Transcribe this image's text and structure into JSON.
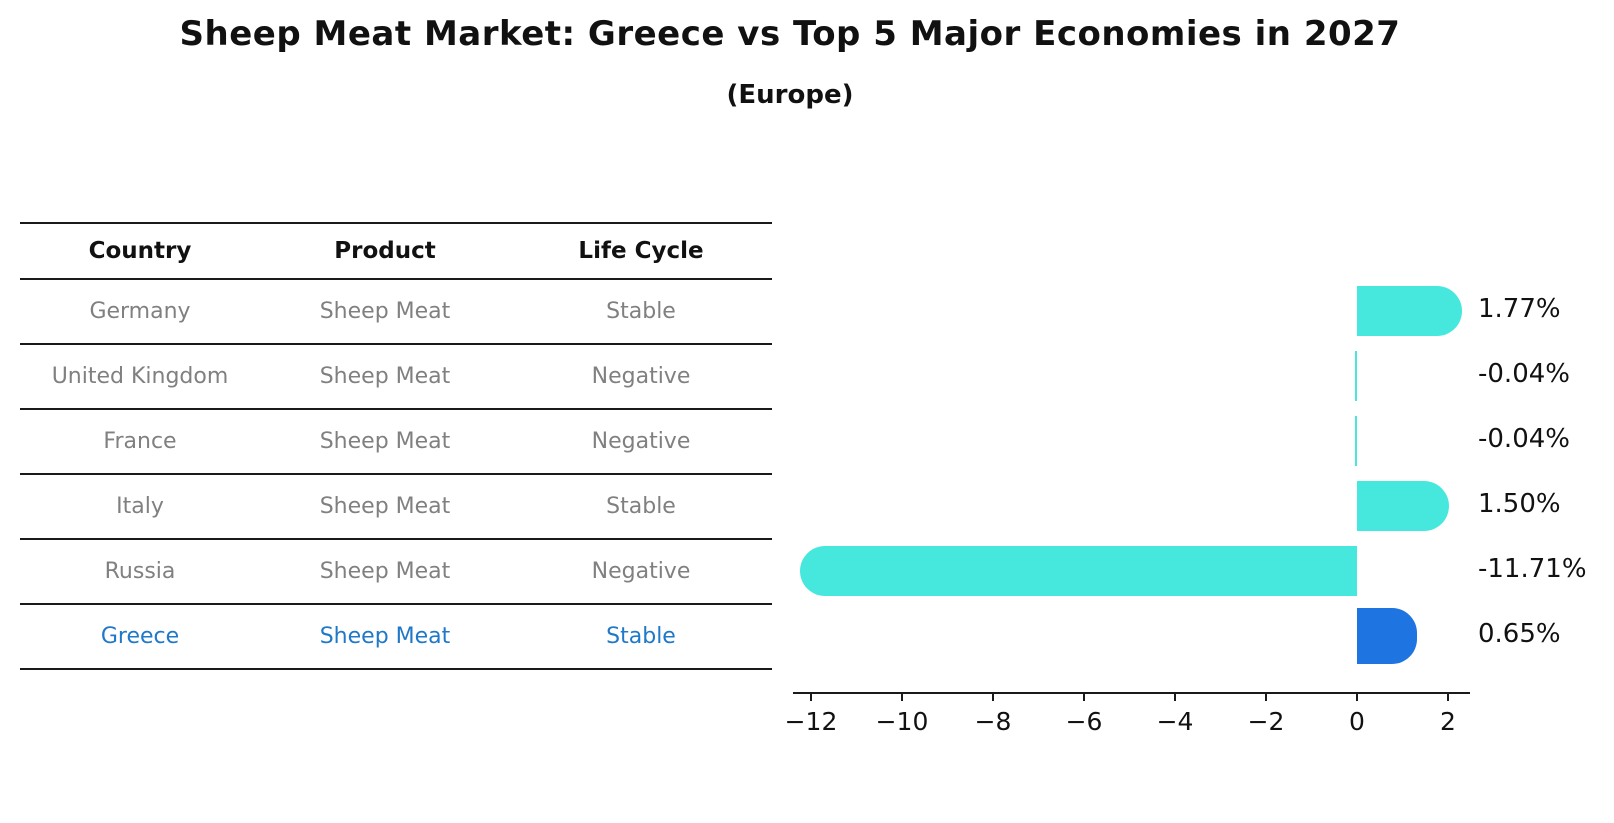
{
  "title": "Sheep Meat Market: Greece vs Top 5 Major Economies in 2027",
  "subtitle": "(Europe)",
  "table": {
    "headers": [
      "Country",
      "Product",
      "Life Cycle"
    ],
    "rows": [
      {
        "country": "Germany",
        "product": "Sheep Meat",
        "life_cycle": "Stable",
        "highlighted": false
      },
      {
        "country": "United Kingdom",
        "product": "Sheep Meat",
        "life_cycle": "Negative",
        "highlighted": false
      },
      {
        "country": "France",
        "product": "Sheep Meat",
        "life_cycle": "Negative",
        "highlighted": false
      },
      {
        "country": "Italy",
        "product": "Sheep Meat",
        "life_cycle": "Stable",
        "highlighted": false
      },
      {
        "country": "Russia",
        "product": "Sheep Meat",
        "life_cycle": "Negative",
        "highlighted": false
      },
      {
        "country": "Greece",
        "product": "Sheep Meat",
        "life_cycle": "Stable",
        "highlighted": true
      }
    ]
  },
  "chart_data": {
    "type": "bar",
    "orientation": "horizontal",
    "categories": [
      "Germany",
      "United Kingdom",
      "France",
      "Italy",
      "Russia",
      "Greece"
    ],
    "values": [
      1.77,
      -0.04,
      -0.04,
      1.5,
      -11.71,
      0.65
    ],
    "value_labels": [
      "1.77%",
      "-0.04%",
      "-0.04%",
      "1.50%",
      "-11.71%",
      "0.65%"
    ],
    "xticks": [
      -12,
      -10,
      -8,
      -6,
      -4,
      -2,
      0,
      2
    ],
    "xtick_labels": [
      "−12",
      "−10",
      "−8",
      "−6",
      "−4",
      "−2",
      "0",
      "2"
    ],
    "xlim": [
      -12.4,
      2.5
    ],
    "grid": false,
    "legend": false,
    "highlight_index": 5,
    "bar_color": "#46e8de",
    "highlight_bar_color": "#1e74e0",
    "highlight_text_color": "#1f78c8"
  }
}
